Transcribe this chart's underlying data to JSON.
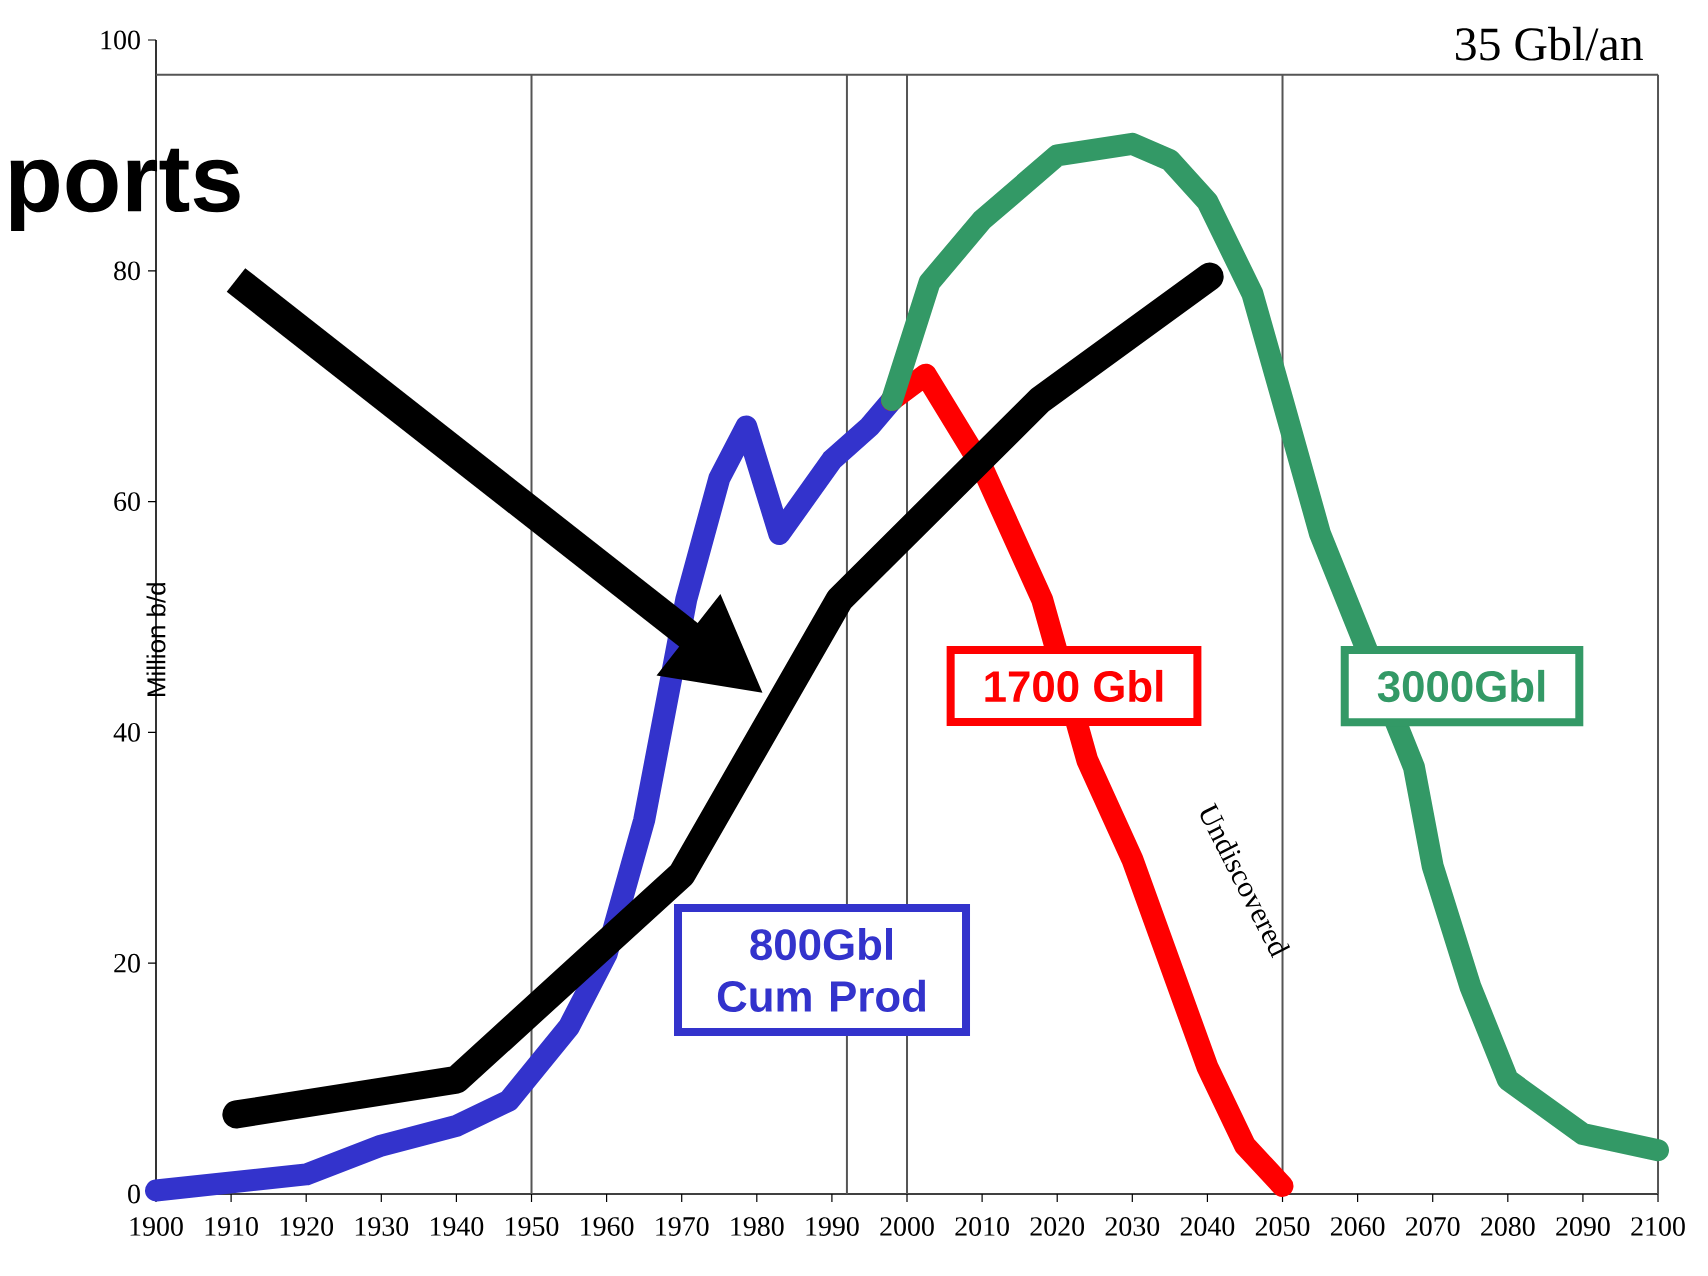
{
  "chart_data": {
    "type": "line",
    "ylabel": "Million b/d",
    "xlim": [
      1900,
      2100
    ],
    "xticks": [
      1900,
      1910,
      1920,
      1930,
      1940,
      1950,
      1960,
      1970,
      1980,
      1990,
      2000,
      2010,
      2020,
      2030,
      2040,
      2050,
      2060,
      2070,
      2080,
      2090,
      2100
    ],
    "ylim": [
      0,
      100
    ],
    "yticks": [
      0,
      20,
      40,
      60,
      80,
      100
    ],
    "line_style": "solid",
    "series": [
      {
        "name": "800Gbl Cum Prod",
        "color": "#3333cc",
        "x": [
          1900,
          1910,
          1920,
          1930,
          1940,
          1947,
          1955,
          1960,
          1965,
          1970.6,
          1975,
          1978.6,
          1983,
          1990,
          1995,
          1998
        ],
        "values": [
          0.3,
          1.0,
          1.7,
          4.2,
          5.9,
          8.1,
          14.5,
          20.8,
          32.4,
          51.5,
          62,
          66.5,
          57.2,
          63.6,
          66.5,
          68.8
        ]
      },
      {
        "name": "1700 Gbl",
        "color": "#ff0000",
        "x": [
          1998,
          2002.5,
          2010,
          2018,
          2024,
          2030,
          2040,
          2045,
          2050
        ],
        "values": [
          68.8,
          71,
          63,
          51.5,
          37.6,
          29,
          11,
          4.2,
          0.7
        ]
      },
      {
        "name": "3000Gbl",
        "color": "#339966",
        "x": [
          1998,
          2003,
          2010,
          2020,
          2030,
          2035,
          2040,
          2046,
          2050,
          2055,
          2067.5,
          2070,
          2075,
          2080,
          2090,
          2100
        ],
        "values": [
          68.8,
          79,
          84.4,
          90,
          91,
          89.6,
          86,
          78,
          68.8,
          57.2,
          37,
          28.4,
          18,
          9.9,
          5.2,
          3.8
        ]
      },
      {
        "color": "#000000",
        "x": [
          1910.7,
          1940,
          1970,
          1991,
          2017.7,
          2040.3
        ],
        "values": [
          6.9,
          9.9,
          27.7,
          51.5,
          68.8,
          79.5
        ]
      }
    ],
    "ref_lines": [
      {
        "axis": "x",
        "value": 1950
      },
      {
        "axis": "x",
        "value": 1992
      },
      {
        "axis": "x",
        "value": 2000
      },
      {
        "axis": "x",
        "value": 2050
      },
      {
        "axis": "y",
        "value": 97
      }
    ],
    "annotations": [
      "35 Gbl/an",
      "ports",
      "Undiscovered"
    ]
  }
}
